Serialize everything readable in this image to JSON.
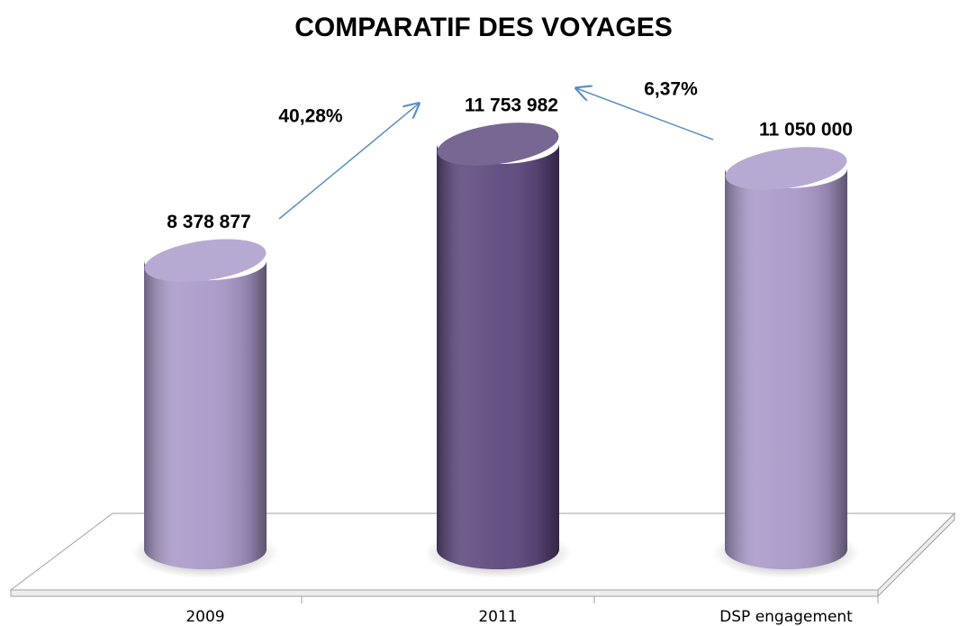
{
  "chart_data": {
    "type": "bar",
    "title": "COMPARATIF DES VOYAGES",
    "categories": [
      "2009",
      "2011",
      "DSP engagement"
    ],
    "values": [
      8378877,
      11753982,
      11050000
    ],
    "value_labels": [
      "8 378 877",
      "11 753 982",
      "11 050 000"
    ],
    "colors": [
      "#a898c8",
      "#5c467c",
      "#a898c8"
    ],
    "annotations": [
      "40,28%",
      "6,37%"
    ]
  }
}
